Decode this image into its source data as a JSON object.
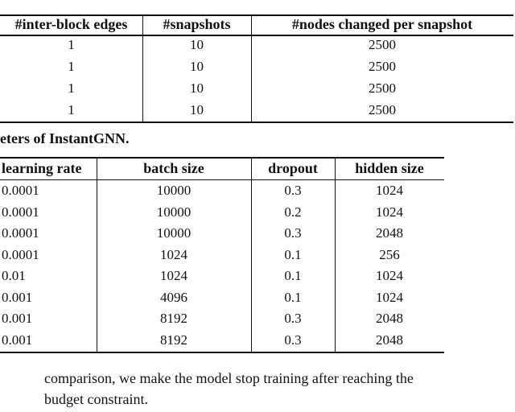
{
  "table1": {
    "headers": [
      "#inter-block edges",
      "#snapshots",
      "#nodes changed per snapshot"
    ],
    "rows": [
      [
        "1",
        "10",
        "2500"
      ],
      [
        "1",
        "10",
        "2500"
      ],
      [
        "1",
        "10",
        "2500"
      ],
      [
        "1",
        "10",
        "2500"
      ]
    ]
  },
  "table2": {
    "caption": "eters of InstantGNN.",
    "headers": [
      "learning rate",
      "batch size",
      "dropout",
      "hidden size"
    ],
    "rows": [
      [
        "0.0001",
        "10000",
        "0.3",
        "1024"
      ],
      [
        "0.0001",
        "10000",
        "0.2",
        "1024"
      ],
      [
        "0.0001",
        "10000",
        "0.3",
        "2048"
      ],
      [
        "0.0001",
        "1024",
        "0.1",
        "256"
      ],
      [
        "0.01",
        "1024",
        "0.1",
        "1024"
      ],
      [
        "0.001",
        "4096",
        "0.1",
        "1024"
      ],
      [
        "0.001",
        "8192",
        "0.3",
        "2048"
      ],
      [
        "0.001",
        "8192",
        "0.3",
        "2048"
      ]
    ]
  },
  "paragraph": {
    "lines": [
      "comparison, we make the model stop training after reaching the",
      "budget constraint."
    ]
  }
}
